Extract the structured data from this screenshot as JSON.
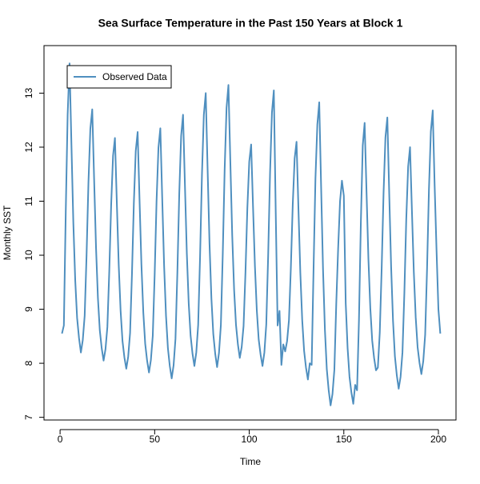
{
  "chart_data": {
    "type": "line",
    "title": "Sea Surface Temperature in the Past 150 Years at Block 1",
    "x_label": "Time",
    "y_label": "Monthly SST",
    "x": [
      1,
      2,
      3,
      4,
      5,
      6,
      7,
      8,
      9,
      10,
      11,
      12,
      13,
      14,
      15,
      16,
      17,
      18,
      19,
      20,
      21,
      22,
      23,
      24,
      25,
      26,
      27,
      28,
      29,
      30,
      31,
      32,
      33,
      34,
      35,
      36,
      37,
      38,
      39,
      40,
      41,
      42,
      43,
      44,
      45,
      46,
      47,
      48,
      49,
      50,
      51,
      52,
      53,
      54,
      55,
      56,
      57,
      58,
      59,
      60,
      61,
      62,
      63,
      64,
      65,
      66,
      67,
      68,
      69,
      70,
      71,
      72,
      73,
      74,
      75,
      76,
      77,
      78,
      79,
      80,
      81,
      82,
      83,
      84,
      85,
      86,
      87,
      88,
      89,
      90,
      91,
      92,
      93,
      94,
      95,
      96,
      97,
      98,
      99,
      100,
      101,
      102,
      103,
      104,
      105,
      106,
      107,
      108,
      109,
      110,
      111,
      112,
      113,
      114,
      115,
      116,
      117,
      118,
      119,
      120,
      121,
      122,
      123,
      124,
      125,
      126,
      127,
      128,
      129,
      130,
      131,
      132,
      133,
      134,
      135,
      136,
      137,
      138,
      139,
      140,
      141,
      142,
      143,
      144,
      145,
      146,
      147,
      148,
      149,
      150,
      151,
      152,
      153,
      154,
      155,
      156,
      157,
      158,
      159,
      160,
      161,
      162,
      163,
      164,
      165,
      166,
      167,
      168,
      169,
      170,
      171,
      172,
      173,
      174,
      175,
      176,
      177,
      178,
      179,
      180,
      181,
      182,
      183,
      184,
      185,
      186,
      187,
      188,
      189,
      190,
      191,
      192,
      193,
      194,
      195,
      196,
      197,
      198,
      199,
      200,
      201
    ],
    "series": [
      {
        "name": "Observed Data",
        "color": "#4f8fbf",
        "values": [
          8.55,
          8.7,
          10.8,
          12.6,
          13.55,
          12.05,
          10.61,
          9.54,
          8.84,
          8.47,
          8.2,
          8.43,
          8.88,
          10.0,
          11.35,
          12.34,
          12.7,
          11.4,
          10.14,
          9.21,
          8.61,
          8.28,
          8.05,
          8.26,
          8.67,
          9.7,
          10.93,
          11.84,
          12.17,
          10.97,
          9.82,
          8.97,
          8.41,
          8.11,
          7.9,
          8.12,
          8.56,
          9.65,
          10.97,
          11.93,
          12.28,
          11.03,
          9.83,
          8.94,
          8.36,
          8.05,
          7.83,
          8.06,
          8.51,
          9.64,
          11.0,
          11.99,
          12.35,
          11.05,
          9.8,
          8.88,
          8.28,
          7.95,
          7.72,
          7.96,
          8.45,
          9.67,
          11.14,
          12.21,
          12.6,
          11.3,
          10.04,
          9.11,
          8.51,
          8.18,
          7.95,
          8.2,
          8.71,
          9.97,
          11.49,
          12.6,
          13.0,
          11.58,
          10.21,
          9.2,
          8.54,
          8.18,
          7.93,
          8.19,
          8.71,
          10.02,
          11.58,
          12.73,
          13.15,
          11.74,
          10.37,
          9.36,
          8.71,
          8.35,
          8.1,
          8.3,
          8.69,
          9.68,
          10.87,
          11.73,
          12.05,
          10.9,
          9.8,
          8.98,
          8.44,
          8.16,
          7.95,
          8.2,
          8.72,
          9.99,
          11.52,
          12.64,
          13.05,
          10.8,
          8.7,
          8.97,
          7.97,
          8.35,
          8.22,
          8.41,
          8.8,
          9.77,
          10.94,
          11.79,
          12.1,
          10.87,
          9.68,
          8.8,
          8.23,
          7.92,
          7.7,
          8.0,
          7.97,
          9.75,
          11.42,
          12.42,
          12.83,
          11.26,
          9.74,
          8.62,
          7.89,
          7.5,
          7.22,
          7.43,
          7.88,
          9.1,
          10.13,
          11.0,
          11.38,
          11.1,
          9.11,
          8.28,
          7.75,
          7.46,
          7.25,
          7.6,
          7.5,
          8.8,
          10.6,
          12.03,
          12.45,
          11.17,
          9.93,
          9.02,
          8.42,
          8.1,
          7.87,
          7.92,
          8.57,
          9.75,
          11.15,
          12.18,
          12.55,
          11.14,
          9.79,
          8.79,
          8.13,
          7.78,
          7.53,
          7.75,
          8.2,
          9.3,
          10.66,
          11.64,
          12.0,
          10.82,
          9.69,
          8.85,
          8.3,
          8.01,
          7.8,
          8.04,
          8.53,
          9.75,
          11.22,
          12.29,
          12.68,
          11.3,
          10.1,
          9.0,
          8.55
        ]
      }
    ],
    "xlim": [
      -8.5,
      209.3
    ],
    "ylim": [
      6.95,
      13.88
    ],
    "xticks": [
      0,
      50,
      100,
      150,
      200
    ],
    "yticks": [
      7,
      8,
      9,
      10,
      11,
      12,
      13
    ],
    "legend": "top-left"
  }
}
